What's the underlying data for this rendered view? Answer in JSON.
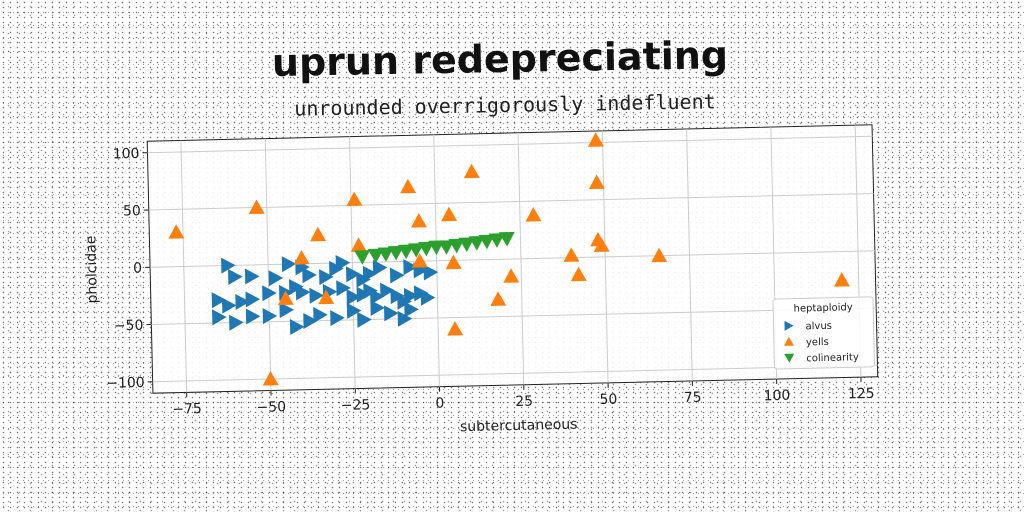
{
  "chart_data": {
    "type": "scatter",
    "title": "uprun redepreciating",
    "subtitle": "unrounded overrigorously indefluent",
    "xlabel": "subtercutaneous",
    "ylabel": "pholcidae",
    "xlim": [
      -85,
      130
    ],
    "ylim": [
      -110,
      110
    ],
    "xticks": [
      -75,
      -50,
      -25,
      0,
      25,
      50,
      75,
      100,
      125
    ],
    "yticks": [
      -100,
      -50,
      0,
      50,
      100
    ],
    "grid": true,
    "legend": {
      "title": "heptaploidy",
      "placement": "lower-right"
    },
    "series": [
      {
        "name": "alvus",
        "color": "#1f77b4",
        "marker": "triangle-right",
        "points": [
          [
            -62,
            0
          ],
          [
            -60,
            -10
          ],
          [
            -55,
            -10
          ],
          [
            -48,
            -12
          ],
          [
            -44,
            0
          ],
          [
            -40,
            -3
          ],
          [
            -38,
            -10
          ],
          [
            -33,
            -12
          ],
          [
            -30,
            -5
          ],
          [
            -28,
            0
          ],
          [
            -25,
            -10
          ],
          [
            -22,
            -15
          ],
          [
            -20,
            -10
          ],
          [
            -17,
            -5
          ],
          [
            -12,
            -12
          ],
          [
            -8,
            -5
          ],
          [
            -5,
            -8
          ],
          [
            -2,
            -10
          ],
          [
            -65,
            -30
          ],
          [
            -62,
            -35
          ],
          [
            -58,
            -32
          ],
          [
            -55,
            -30
          ],
          [
            -50,
            -25
          ],
          [
            -45,
            -25
          ],
          [
            -42,
            -20
          ],
          [
            -40,
            -25
          ],
          [
            -36,
            -28
          ],
          [
            -32,
            -25
          ],
          [
            -28,
            -22
          ],
          [
            -25,
            -30
          ],
          [
            -22,
            -28
          ],
          [
            -20,
            -25
          ],
          [
            -18,
            -30
          ],
          [
            -15,
            -25
          ],
          [
            -12,
            -30
          ],
          [
            -10,
            -35
          ],
          [
            -8,
            -30
          ],
          [
            -5,
            -28
          ],
          [
            -3,
            -32
          ],
          [
            -65,
            -45
          ],
          [
            -60,
            -50
          ],
          [
            -55,
            -45
          ],
          [
            -50,
            -45
          ],
          [
            -45,
            -40
          ],
          [
            -42,
            -55
          ],
          [
            -38,
            -50
          ],
          [
            -35,
            -45
          ],
          [
            -30,
            -48
          ],
          [
            -25,
            -42
          ],
          [
            -22,
            -50
          ],
          [
            -18,
            -40
          ],
          [
            -14,
            -45
          ],
          [
            -10,
            -50
          ],
          [
            -8,
            -42
          ]
        ]
      },
      {
        "name": "yells",
        "color": "#ff7f0e",
        "marker": "triangle-up",
        "points": [
          [
            -77,
            30
          ],
          [
            -53,
            50
          ],
          [
            -50,
            -100
          ],
          [
            -45,
            -30
          ],
          [
            -40,
            5
          ],
          [
            -35,
            25
          ],
          [
            -33,
            -30
          ],
          [
            -24,
            55
          ],
          [
            -23,
            15
          ],
          [
            -8,
            65
          ],
          [
            -5,
            35
          ],
          [
            -5,
            0
          ],
          [
            4,
            40
          ],
          [
            5,
            -60
          ],
          [
            5,
            -2
          ],
          [
            11,
            77
          ],
          [
            18,
            -35
          ],
          [
            22,
            -15
          ],
          [
            29,
            38
          ],
          [
            40,
            2
          ],
          [
            42,
            -15
          ],
          [
            48,
            102
          ],
          [
            48,
            65
          ],
          [
            48,
            15
          ],
          [
            49,
            10
          ],
          [
            66,
            0
          ],
          [
            120,
            -25
          ]
        ]
      },
      {
        "name": "colinearity",
        "color": "#2ca02c",
        "marker": "triangle-down",
        "points": [
          [
            -22,
            5
          ],
          [
            -18,
            6
          ],
          [
            -15,
            7
          ],
          [
            -12,
            8
          ],
          [
            -9,
            9
          ],
          [
            -6,
            10
          ],
          [
            -3,
            11
          ],
          [
            0,
            12
          ],
          [
            3,
            12
          ],
          [
            6,
            13
          ],
          [
            9,
            14
          ],
          [
            12,
            15
          ],
          [
            15,
            16
          ],
          [
            18,
            17
          ],
          [
            21,
            18
          ]
        ]
      }
    ]
  }
}
